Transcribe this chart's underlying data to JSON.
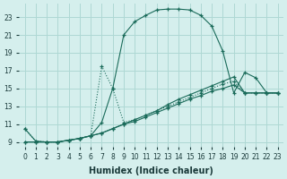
{
  "xlabel": "Humidex (Indice chaleur)",
  "ylabel": "",
  "background_color": "#d5efed",
  "grid_color": "#aed8d4",
  "line_color": "#1a6b5a",
  "line1_x": [
    0,
    1,
    2,
    3,
    4,
    5,
    6,
    7,
    8,
    9,
    10,
    11,
    12,
    13,
    14,
    15,
    16,
    17,
    18,
    19,
    20,
    21,
    22,
    23
  ],
  "line1_y": [
    10.5,
    9.1,
    9.0,
    9.0,
    9.2,
    9.4,
    9.7,
    17.5,
    15.0,
    11.2,
    11.5,
    12.0,
    12.5,
    13.0,
    13.5,
    14.0,
    14.5,
    15.0,
    15.5,
    15.8,
    14.5,
    14.5,
    14.5,
    14.5
  ],
  "line2_x": [
    0,
    1,
    2,
    3,
    4,
    5,
    6,
    7,
    8,
    9,
    10,
    11,
    12,
    13,
    14,
    15,
    16,
    17,
    18,
    19,
    20,
    21,
    22,
    23
  ],
  "line2_y": [
    10.5,
    9.1,
    9.0,
    9.0,
    9.2,
    9.4,
    9.7,
    11.2,
    15.0,
    21.0,
    22.5,
    23.2,
    23.8,
    23.9,
    23.9,
    23.8,
    23.2,
    22.0,
    19.2,
    14.5,
    16.8,
    16.2,
    14.5,
    14.5
  ],
  "line3_x": [
    0,
    1,
    2,
    3,
    4,
    5,
    6,
    7,
    8,
    9,
    10,
    11,
    12,
    13,
    14,
    15,
    16,
    17,
    18,
    19,
    20,
    21,
    22,
    23
  ],
  "line3_y": [
    9.0,
    9.0,
    9.0,
    9.0,
    9.2,
    9.4,
    9.7,
    10.0,
    10.5,
    11.0,
    11.5,
    12.0,
    12.5,
    13.2,
    13.8,
    14.3,
    14.8,
    15.3,
    15.8,
    16.3,
    14.5,
    14.5,
    14.5,
    14.5
  ],
  "line4_x": [
    0,
    1,
    2,
    3,
    4,
    5,
    6,
    7,
    8,
    9,
    10,
    11,
    12,
    13,
    14,
    15,
    16,
    17,
    18,
    19,
    20,
    21,
    22,
    23
  ],
  "line4_y": [
    9.0,
    9.0,
    9.0,
    9.0,
    9.2,
    9.4,
    9.7,
    10.0,
    10.5,
    11.0,
    11.3,
    11.8,
    12.3,
    12.8,
    13.3,
    13.8,
    14.2,
    14.7,
    15.0,
    15.4,
    14.5,
    14.5,
    14.5,
    14.5
  ],
  "xlim": [
    -0.5,
    23.5
  ],
  "ylim": [
    8.5,
    24.5
  ],
  "yticks": [
    9,
    11,
    13,
    15,
    17,
    19,
    21,
    23
  ],
  "xticks": [
    0,
    1,
    2,
    3,
    4,
    5,
    6,
    7,
    8,
    9,
    10,
    11,
    12,
    13,
    14,
    15,
    16,
    17,
    18,
    19,
    20,
    21,
    22,
    23
  ],
  "label_fontsize": 7,
  "tick_fontsize": 5.5
}
